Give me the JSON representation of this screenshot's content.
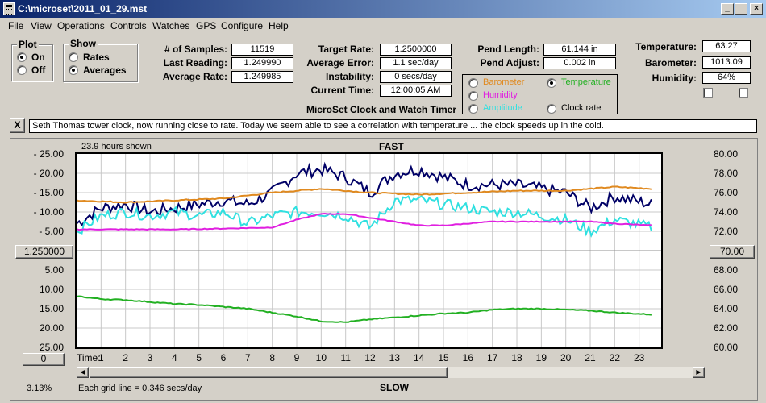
{
  "window": {
    "title": "C:\\microset\\2011_01_29.mst",
    "min": "_",
    "max": "□",
    "close": "×"
  },
  "menu": [
    "File",
    "View",
    "Operations",
    "Controls",
    "Watches",
    "GPS",
    "Configure",
    "Help"
  ],
  "plot_group": {
    "title": "Plot",
    "on": "On",
    "off": "Off",
    "selected": "On"
  },
  "show_group": {
    "title": "Show",
    "rates": "Rates",
    "averages": "Averages",
    "selected": "Averages"
  },
  "stats": {
    "samples_label": "# of Samples:",
    "samples": "11519",
    "last_reading_label": "Last Reading:",
    "last_reading": "1.249990",
    "average_rate_label": "Average Rate:",
    "average_rate": "1.249985"
  },
  "target": {
    "target_rate_label": "Target Rate:",
    "target_rate": "1.2500000",
    "avg_error_label": "Average Error:",
    "avg_error": "1.1 sec/day",
    "instability_label": "Instability:",
    "instability": "0 secs/day",
    "current_time_label": "Current Time:",
    "current_time": "12:00:05 AM"
  },
  "pend": {
    "length_label": "Pend Length:",
    "length": "61.144 in",
    "adjust_label": "Pend Adjust:",
    "adjust": "0.002 in"
  },
  "subtitle": "MicroSet Clock and Watch Timer",
  "overlay_options": {
    "barometer": "Barometer",
    "temperature": "Temperature",
    "humidity": "Humidity",
    "amplitude": "Amplitude",
    "clock_rate": "Clock rate",
    "selected": "Temperature"
  },
  "env": {
    "temperature_label": "Temperature:",
    "temperature": "63.27",
    "barometer_label": "Barometer:",
    "barometer": "1013.09",
    "humidity_label": "Humidity:",
    "humidity": "64%"
  },
  "notes": {
    "close": "X",
    "text": "Seth Thomas tower clock, now running close to rate. Today we seem able to see a correlation with temperature ... the clock speeds up in the cold."
  },
  "chart_header": {
    "hours_shown": "23.9 hours shown",
    "fast": "FAST",
    "slow": "SLOW"
  },
  "left_button": "1.250000",
  "right_button": "70.00",
  "zero_button": "0",
  "footer": {
    "percent": "3.13%",
    "grid_note": "Each grid line = 0.346 secs/day",
    "time_label": "Time:"
  },
  "colors": {
    "rate": "#000066",
    "barometer": "#e08a20",
    "temperature": "#22b022",
    "humidity": "#e020e0",
    "amplitude": "#30e0e0"
  },
  "chart_data": {
    "type": "line",
    "x_label": "Time:",
    "x_ticks": [
      1,
      2,
      3,
      4,
      5,
      6,
      7,
      8,
      9,
      10,
      11,
      12,
      13,
      14,
      15,
      16,
      17,
      18,
      19,
      20,
      21,
      22,
      23
    ],
    "xlim": [
      0,
      23.9
    ],
    "y_left_ticks_top": [
      "25.00",
      "20.00",
      "15.00",
      "10.00",
      "5.00"
    ],
    "y_left_ticks_bottom": [
      "5.00",
      "10.00",
      "15.00",
      "20.00",
      "25.00"
    ],
    "y_left_center": "1.250000",
    "y_right_ticks": [
      "80.00",
      "78.00",
      "76.00",
      "74.00",
      "72.00",
      "70.00",
      "68.00",
      "66.00",
      "64.00",
      "62.00",
      "60.00"
    ],
    "ylim_left_secs": [
      -25,
      25
    ],
    "ylim_right": [
      60,
      80
    ],
    "series": [
      {
        "key": "rate",
        "color": "#000066",
        "x": [
          0,
          1,
          2,
          3,
          4,
          5,
          6,
          7,
          8,
          9,
          10,
          11,
          12,
          13,
          14,
          15,
          16,
          17,
          18,
          19,
          20,
          21,
          22,
          23.5
        ],
        "y": [
          7,
          11,
          12,
          10,
          11,
          12,
          13,
          12,
          15,
          20,
          21,
          19,
          15,
          20,
          21,
          19,
          17,
          17,
          17,
          16,
          15,
          11,
          14,
          12
        ]
      },
      {
        "key": "barometer",
        "color": "#e08a20",
        "x": [
          0,
          2,
          4,
          6,
          8,
          10,
          12,
          14,
          16,
          18,
          20,
          22,
          23.5
        ],
        "y": [
          13,
          12.5,
          13,
          13.5,
          15,
          16,
          15,
          14.5,
          15,
          15.5,
          15.5,
          16.5,
          16
        ]
      },
      {
        "key": "amplitude",
        "color": "#30e0e0",
        "x": [
          0,
          1,
          2,
          3,
          4,
          5,
          6,
          7,
          8,
          9,
          10,
          11,
          12,
          13,
          14,
          15,
          16,
          17,
          18,
          19,
          20,
          21,
          22,
          23.5
        ],
        "y": [
          5,
          9,
          10,
          9,
          10,
          9,
          10,
          7,
          9,
          10,
          10,
          9,
          6,
          13,
          13,
          12,
          11,
          10,
          10,
          9,
          8,
          5,
          8,
          6
        ]
      },
      {
        "key": "humidity",
        "color": "#e020e0",
        "x": [
          0,
          2,
          4,
          6,
          8,
          9,
          10,
          11,
          12,
          13,
          14,
          15,
          16,
          17,
          18,
          19,
          20,
          21,
          22,
          23.5
        ],
        "y": [
          5.5,
          5.5,
          5.5,
          5.7,
          6,
          8,
          9.5,
          9.5,
          8.5,
          7.5,
          6.5,
          6.5,
          7,
          7.5,
          7.5,
          7.5,
          7.5,
          7.5,
          7,
          6.5
        ]
      },
      {
        "key": "temperature",
        "color": "#22b022",
        "axis": "right",
        "x": [
          0,
          1,
          2,
          3,
          4,
          5,
          6,
          7,
          8,
          9,
          10,
          11,
          12,
          13,
          14,
          15,
          16,
          17,
          18,
          19,
          20,
          21,
          22,
          23.5
        ],
        "y": [
          65.3,
          65.0,
          64.9,
          64.7,
          64.5,
          64.4,
          64.2,
          64.0,
          63.6,
          63.2,
          62.7,
          62.6,
          62.9,
          63.1,
          63.3,
          63.5,
          63.6,
          63.9,
          64.0,
          64.0,
          63.9,
          63.8,
          63.6,
          63.4
        ]
      }
    ]
  }
}
